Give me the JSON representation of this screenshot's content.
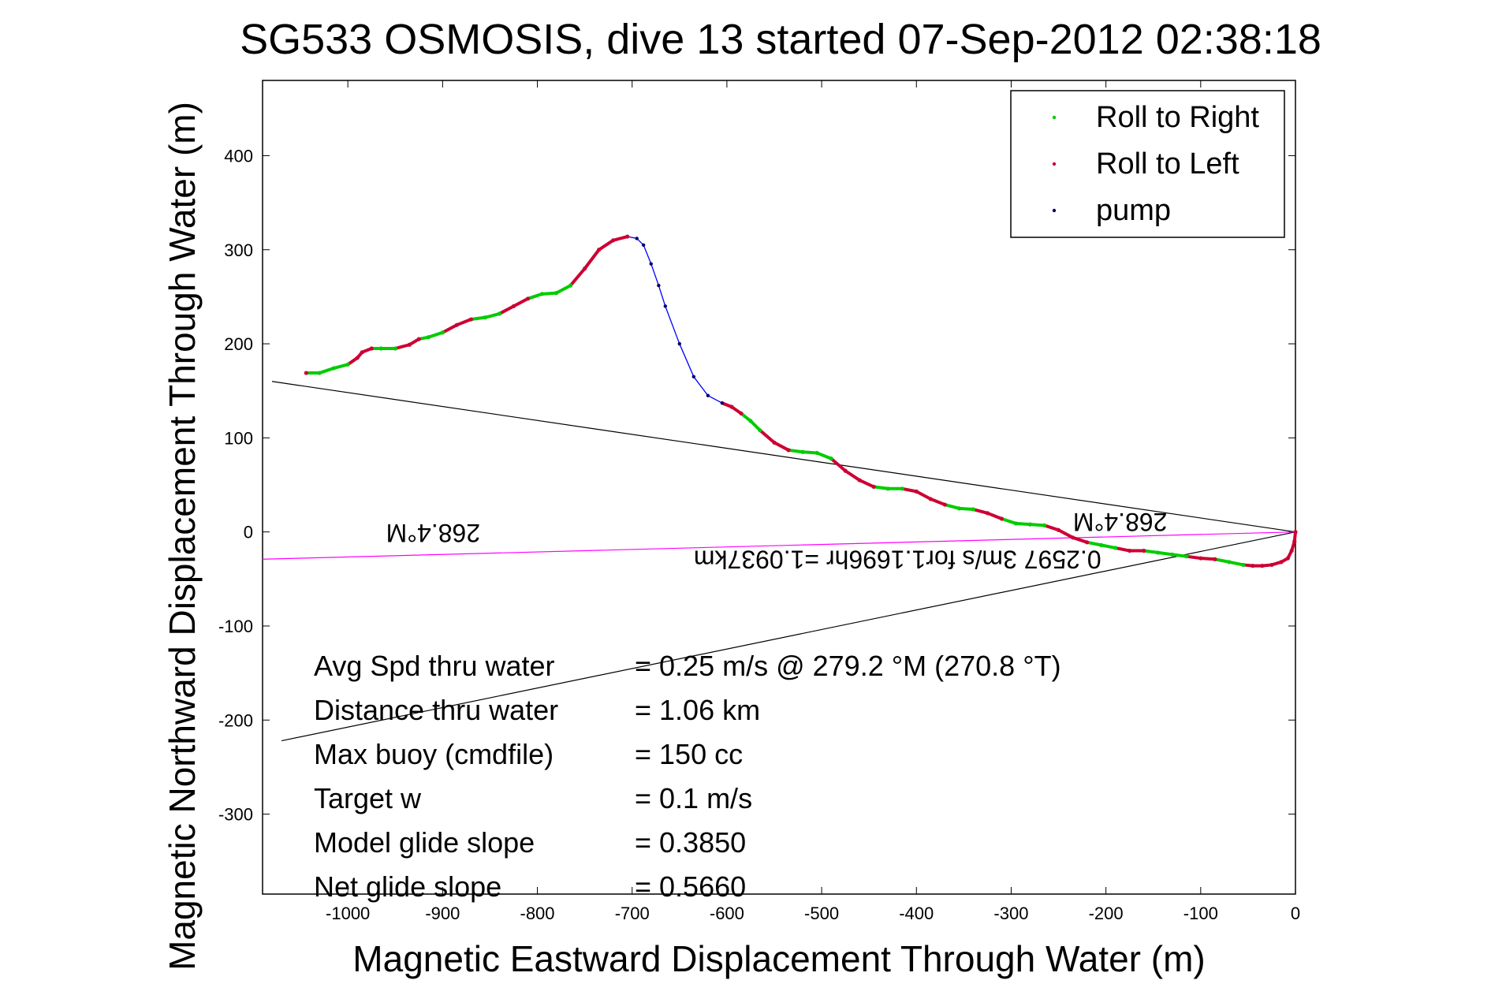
{
  "chart_data": {
    "type": "scatter",
    "title": "SG533 OSMOSIS, dive 13 started 07-Sep-2012 02:38:18",
    "xlabel": "Magnetic Eastward Displacement Through Water (m)",
    "ylabel": "Magnetic Northward Displacement Through Water (m)",
    "xlim": [
      -1090,
      0
    ],
    "ylim": [
      -385,
      480
    ],
    "xticks": [
      -1000,
      -900,
      -800,
      -700,
      -600,
      -500,
      -400,
      -300,
      -200,
      -100,
      0
    ],
    "yticks": [
      -300,
      -200,
      -100,
      0,
      100,
      200,
      300,
      400
    ],
    "grid": false,
    "legend_position": "top-right",
    "legend": [
      {
        "label": "Roll to Right",
        "color": "#00cc00"
      },
      {
        "label": "Roll to Left",
        "color": "#cc0033"
      },
      {
        "label": "pump",
        "color": "#000066"
      }
    ],
    "track": {
      "name": "glider track",
      "x": [
        -1044,
        -1030,
        -1015,
        -1000,
        -990,
        -985,
        -975,
        -965,
        -950,
        -935,
        -925,
        -915,
        -900,
        -885,
        -870,
        -855,
        -840,
        -825,
        -810,
        -795,
        -780,
        -765,
        -750,
        -735,
        -720,
        -705,
        -695,
        -688,
        -680,
        -672,
        -665,
        -650,
        -635,
        -620,
        -605,
        -595,
        -585,
        -575,
        -565,
        -550,
        -535,
        -520,
        -505,
        -490,
        -475,
        -460,
        -445,
        -430,
        -415,
        -400,
        -385,
        -370,
        -355,
        -340,
        -325,
        -310,
        -295,
        -280,
        -265,
        -250,
        -235,
        -220,
        -205,
        -190,
        -175,
        -160,
        -145,
        -130,
        -115,
        -100,
        -85,
        -70,
        -55,
        -45,
        -35,
        -25,
        -15,
        -8,
        -4,
        -1,
        0
      ],
      "y": [
        169,
        169,
        174,
        178,
        185,
        191,
        195,
        195,
        195,
        199,
        205,
        207,
        212,
        220,
        226,
        228,
        232,
        240,
        248,
        253,
        254,
        262,
        280,
        300,
        310,
        314,
        312,
        305,
        285,
        262,
        240,
        200,
        165,
        145,
        137,
        133,
        126,
        118,
        108,
        95,
        87,
        85,
        84,
        78,
        65,
        55,
        48,
        46,
        46,
        43,
        35,
        29,
        25,
        24,
        20,
        14,
        9,
        8,
        7,
        2,
        -6,
        -11,
        -14,
        -17,
        -20,
        -20,
        -22,
        -24,
        -26,
        -28,
        -29,
        -32,
        -35,
        -36,
        -36,
        -35,
        -32,
        -28,
        -20,
        -10,
        0
      ],
      "state": [
        "L",
        "R",
        "R",
        "R",
        "L",
        "L",
        "L",
        "R",
        "R",
        "L",
        "L",
        "R",
        "R",
        "L",
        "L",
        "R",
        "R",
        "L",
        "L",
        "R",
        "R",
        "R",
        "L",
        "L",
        "L",
        "L",
        "P",
        "P",
        "P",
        "P",
        "P",
        "P",
        "P",
        "P",
        "P",
        "L",
        "L",
        "R",
        "R",
        "L",
        "L",
        "R",
        "R",
        "R",
        "L",
        "L",
        "L",
        "R",
        "R",
        "L",
        "L",
        "L",
        "R",
        "R",
        "L",
        "L",
        "R",
        "R",
        "R",
        "L",
        "L",
        "L",
        "R",
        "R",
        "L",
        "L",
        "R",
        "R",
        "R",
        "L",
        "L",
        "R",
        "R",
        "L",
        "L",
        "L",
        "L",
        "L",
        "L",
        "L",
        "L"
      ]
    },
    "reference_lines": [
      {
        "name": "",
        "color": "#000000",
        "x": [
          -1080,
          0
        ],
        "y": [
          160,
          0
        ]
      },
      {
        "name": "",
        "color": "#000000",
        "x": [
          -1070,
          0
        ],
        "y": [
          -222,
          0
        ]
      },
      {
        "name": "",
        "color": "#ff00ff",
        "x": [
          -1090,
          0
        ],
        "y": [
          -29,
          0
        ]
      }
    ],
    "rotated_annotations": [
      {
        "text": "268.4°M",
        "x": -910,
        "y": 8
      },
      {
        "text": "268.4°M",
        "x": -185,
        "y": 20
      },
      {
        "text": "0.2597 3m/s for1.1696hr =1.0937km",
        "x": -420,
        "y": -20
      }
    ],
    "stats": [
      {
        "label": "Avg Spd thru water",
        "value": "=  0.25 m/s @ 279.2 °M (270.8 °T)"
      },
      {
        "label": "Distance thru water",
        "value": "=  1.06 km"
      },
      {
        "label": "Max buoy (cmdfile)",
        "value": "= 150 cc"
      },
      {
        "label": "Target w",
        "value": "= 0.1 m/s"
      },
      {
        "label": "Model glide slope",
        "value": "= 0.3850"
      },
      {
        "label": "Net glide slope",
        "value": "= 0.5660"
      }
    ]
  }
}
